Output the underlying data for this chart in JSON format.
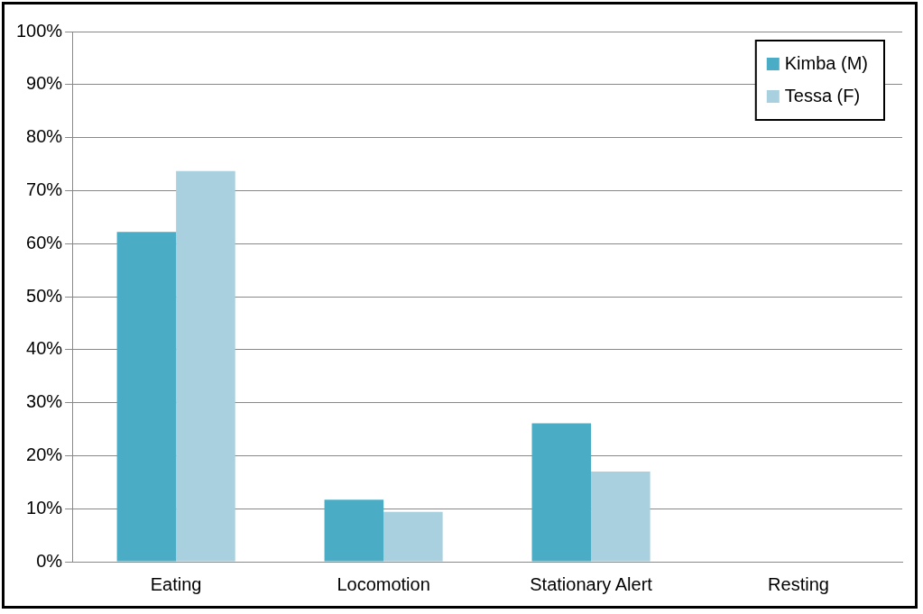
{
  "chart_data": {
    "type": "bar",
    "categories": [
      "Eating",
      "Locomotion",
      "Stationary Alert",
      "Resting"
    ],
    "series": [
      {
        "name": "Kimba (M)",
        "color": "#4bacc6",
        "values": [
          62.2,
          11.7,
          26.1,
          0
        ]
      },
      {
        "name": "Tessa (F)",
        "color": "#a9d0de",
        "values": [
          73.7,
          9.4,
          17.0,
          0
        ]
      }
    ],
    "ylim": [
      0,
      100
    ],
    "yticks": [
      {
        "value": 0,
        "label": "0%"
      },
      {
        "value": 10,
        "label": "10%"
      },
      {
        "value": 20,
        "label": "20%"
      },
      {
        "value": 30,
        "label": "30%"
      },
      {
        "value": 40,
        "label": "40%"
      },
      {
        "value": 50,
        "label": "50%"
      },
      {
        "value": 60,
        "label": "60%"
      },
      {
        "value": 70,
        "label": "70%"
      },
      {
        "value": 80,
        "label": "80%"
      },
      {
        "value": 90,
        "label": "90%"
      },
      {
        "value": 100,
        "label": "100%"
      }
    ],
    "grid": "y",
    "legend": "top right"
  }
}
